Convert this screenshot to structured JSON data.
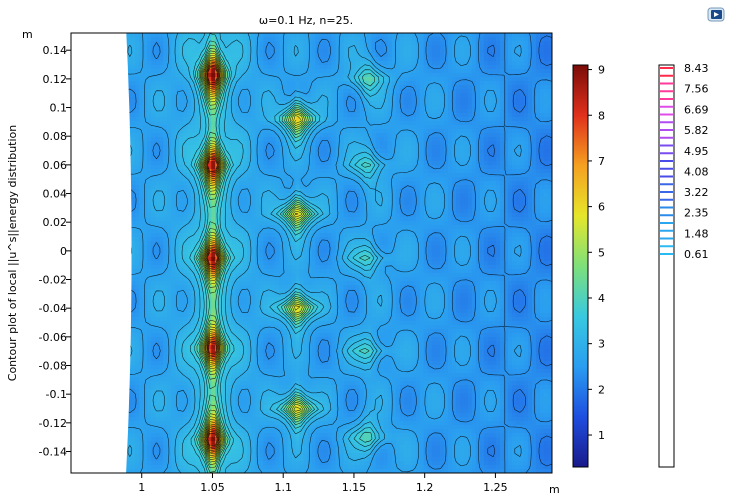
{
  "chart_data": {
    "type": "heatmap",
    "title": "ω=0.1 Hz, n=25.",
    "xlabel": "",
    "ylabel": "Contour plot of local ||u^s||energy distribution",
    "x_unit": "m",
    "y_unit": "m",
    "xlim": [
      0.95,
      1.29
    ],
    "ylim": [
      -0.155,
      0.152
    ],
    "x_ticks": [
      "1",
      "1.05",
      "1.1",
      "1.15",
      "1.2",
      "1.25"
    ],
    "x_tick_values": [
      1,
      1.05,
      1.1,
      1.15,
      1.2,
      1.25
    ],
    "y_ticks": [
      "0.14",
      "0.12",
      "0.1",
      "0.08",
      "0.06",
      "0.04",
      "0.02",
      "0",
      "-0.02",
      "-0.04",
      "-0.06",
      "-0.08",
      "-0.1",
      "-0.12",
      "-0.14"
    ],
    "y_tick_values": [
      0.14,
      0.12,
      0.1,
      0.08,
      0.06,
      0.04,
      0.02,
      0,
      -0.02,
      -0.04,
      -0.06,
      -0.08,
      -0.1,
      -0.12,
      -0.14
    ],
    "surface_colorbar": {
      "range": [
        0.3,
        9.1
      ],
      "ticks": [
        "9",
        "8",
        "7",
        "6",
        "5",
        "4",
        "3",
        "2",
        "1"
      ],
      "tick_values": [
        9,
        8,
        7,
        6,
        5,
        4,
        3,
        2,
        1
      ]
    },
    "contour_levels": {
      "labels": [
        "8.43",
        "7.56",
        "6.69",
        "5.82",
        "4.95",
        "4.08",
        "3.22",
        "2.35",
        "1.48",
        "0.61"
      ],
      "values": [
        8.43,
        7.56,
        6.69,
        5.82,
        4.95,
        4.08,
        3.22,
        2.35,
        1.48,
        0.61
      ],
      "count": 25
    },
    "field": {
      "baseline": 2.6,
      "domain_left_edge_x": 0.99,
      "primary_peaks": [
        {
          "x": 1.05,
          "y": 0.123,
          "value": 8.9
        },
        {
          "x": 1.05,
          "y": 0.06,
          "value": 8.8
        },
        {
          "x": 1.05,
          "y": -0.005,
          "value": 9.0
        },
        {
          "x": 1.05,
          "y": -0.068,
          "value": 8.8
        },
        {
          "x": 1.05,
          "y": -0.132,
          "value": 8.9
        }
      ],
      "secondary_peaks": [
        {
          "x": 1.11,
          "y": 0.092,
          "value": 6.3
        },
        {
          "x": 1.11,
          "y": 0.026,
          "value": 6.3
        },
        {
          "x": 1.11,
          "y": -0.04,
          "value": 6.3
        },
        {
          "x": 1.11,
          "y": -0.11,
          "value": 6.3
        }
      ],
      "tertiary_peaks": [
        {
          "x": 1.16,
          "y": 0.12,
          "value": 4.2
        },
        {
          "x": 1.16,
          "y": 0.06,
          "value": 4.0
        },
        {
          "x": 1.16,
          "y": -0.005,
          "value": 4.0
        },
        {
          "x": 1.16,
          "y": -0.07,
          "value": 4.0
        },
        {
          "x": 1.16,
          "y": -0.13,
          "value": 4.2
        }
      ]
    }
  },
  "colors": {
    "colormap": [
      "#1a1a8a",
      "#1e4ee0",
      "#2a9df0",
      "#38c9e0",
      "#7ee07a",
      "#e6e62a",
      "#f5a020",
      "#e0301c",
      "#7a0c08"
    ],
    "contour_line": "#000000",
    "axis": "#000000",
    "level_lines": [
      "#ff2a4a",
      "#ff3a9a",
      "#e04ce8",
      "#b04cf0",
      "#7a4cf0",
      "#4a4ce8",
      "#3a66e8",
      "#2a8ae8",
      "#2aa6ee",
      "#2abaf2"
    ]
  },
  "toolbar": {
    "button_icon": "play-icon"
  }
}
